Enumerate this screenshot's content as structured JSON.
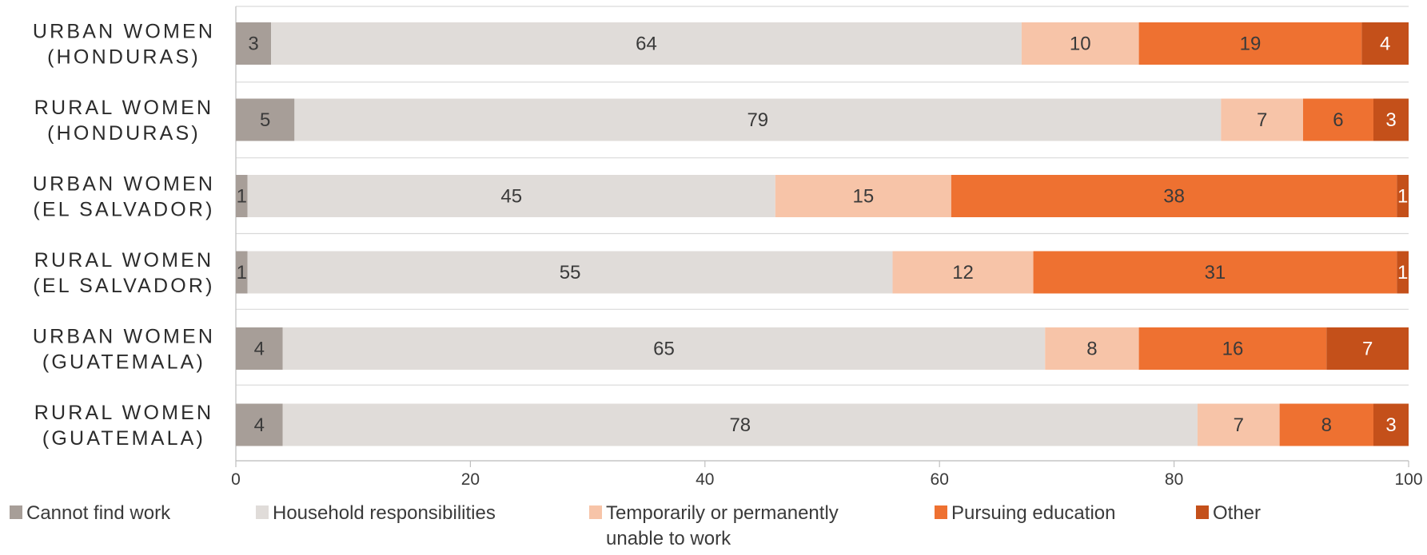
{
  "chart_data": {
    "type": "bar",
    "orientation": "horizontal",
    "stacked": true,
    "categories": [
      [
        "URBAN WOMEN",
        "(HONDURAS)"
      ],
      [
        "RURAL WOMEN",
        "(HONDURAS)"
      ],
      [
        "URBAN WOMEN",
        "(EL SALVADOR)"
      ],
      [
        "RURAL WOMEN",
        "(EL SALVADOR)"
      ],
      [
        "URBAN WOMEN",
        "(GUATEMALA)"
      ],
      [
        "RURAL WOMEN",
        "(GUATEMALA)"
      ]
    ],
    "series": [
      {
        "name": "Cannot find work",
        "color": "#a79e98",
        "values": [
          3,
          5,
          1,
          1,
          4,
          4
        ]
      },
      {
        "name": "Household responsibilities",
        "color": "#e0dcd9",
        "values": [
          64,
          79,
          45,
          55,
          65,
          78
        ]
      },
      {
        "name": "Temporarily or permanently unable to work",
        "color": "#f7c4a8",
        "values": [
          10,
          7,
          15,
          12,
          8,
          7
        ]
      },
      {
        "name": "Pursuing education",
        "color": "#ee7131",
        "values": [
          19,
          6,
          38,
          31,
          16,
          8
        ]
      },
      {
        "name": "Other",
        "color": "#c4501a",
        "values": [
          4,
          3,
          1,
          1,
          7,
          3
        ]
      }
    ],
    "legend_lines": [
      [
        "Cannot find work"
      ],
      [
        "Household responsibilities"
      ],
      [
        "Temporarily or permanently",
        "unable to work"
      ],
      [
        "Pursuing education"
      ],
      [
        "Other"
      ]
    ],
    "xlim": [
      0,
      100
    ],
    "xticks": [
      0,
      20,
      40,
      60,
      80,
      100
    ],
    "grid": "horizontal separators between bars",
    "legend_position": "bottom"
  }
}
